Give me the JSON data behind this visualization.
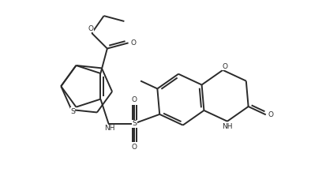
{
  "bg_color": "#ffffff",
  "line_color": "#2a2a2a",
  "line_width": 1.4,
  "dbo": 0.032,
  "figsize": [
    4.13,
    2.18
  ],
  "dpi": 100,
  "xlim": [
    0,
    4.13
  ],
  "ylim": [
    0,
    2.18
  ],
  "bl": 0.33
}
